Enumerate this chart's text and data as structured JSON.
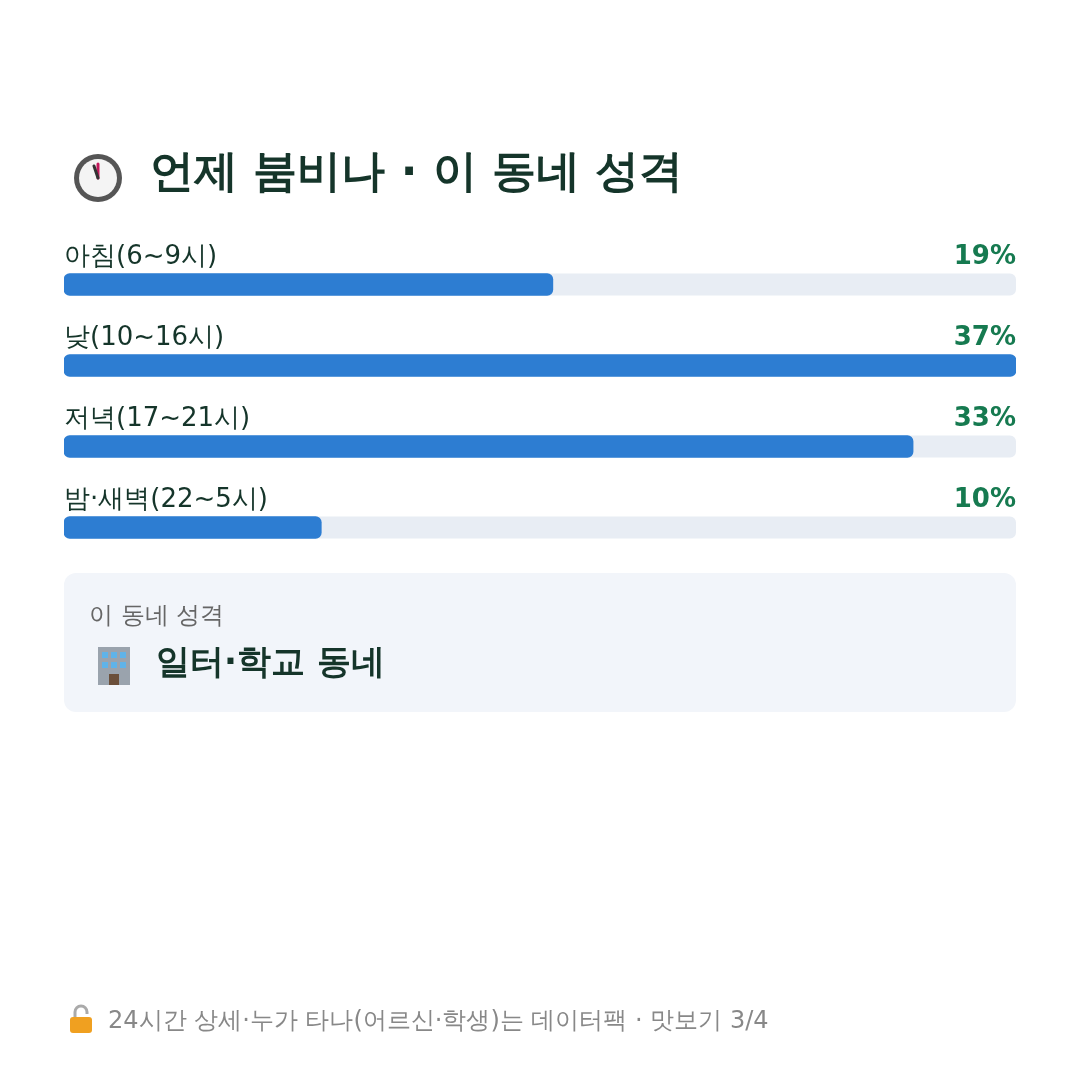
{
  "chart_data": {
    "type": "bar",
    "orientation": "horizontal",
    "title": "언제 붐비나 · 이 동네 성격",
    "categories": [
      "아침(6~9시)",
      "낮(10~16시)",
      "저녁(17~21시)",
      "밤·새벽(22~5시)"
    ],
    "values": [
      19,
      37,
      33,
      10
    ],
    "color": "#2d7dd2",
    "value_labels": [
      "19%",
      "37%",
      "33%",
      "10%"
    ],
    "xlim": [
      0,
      37
    ],
    "grid": false,
    "legend": false,
    "tick_labels": false,
    "annotations": [
      "이 동네 성격",
      "일터·학교 동네",
      "24시간 상세·누가 타나(어르신·학생)는 데이터팩 · 맛보기 3/4"
    ]
  }
}
